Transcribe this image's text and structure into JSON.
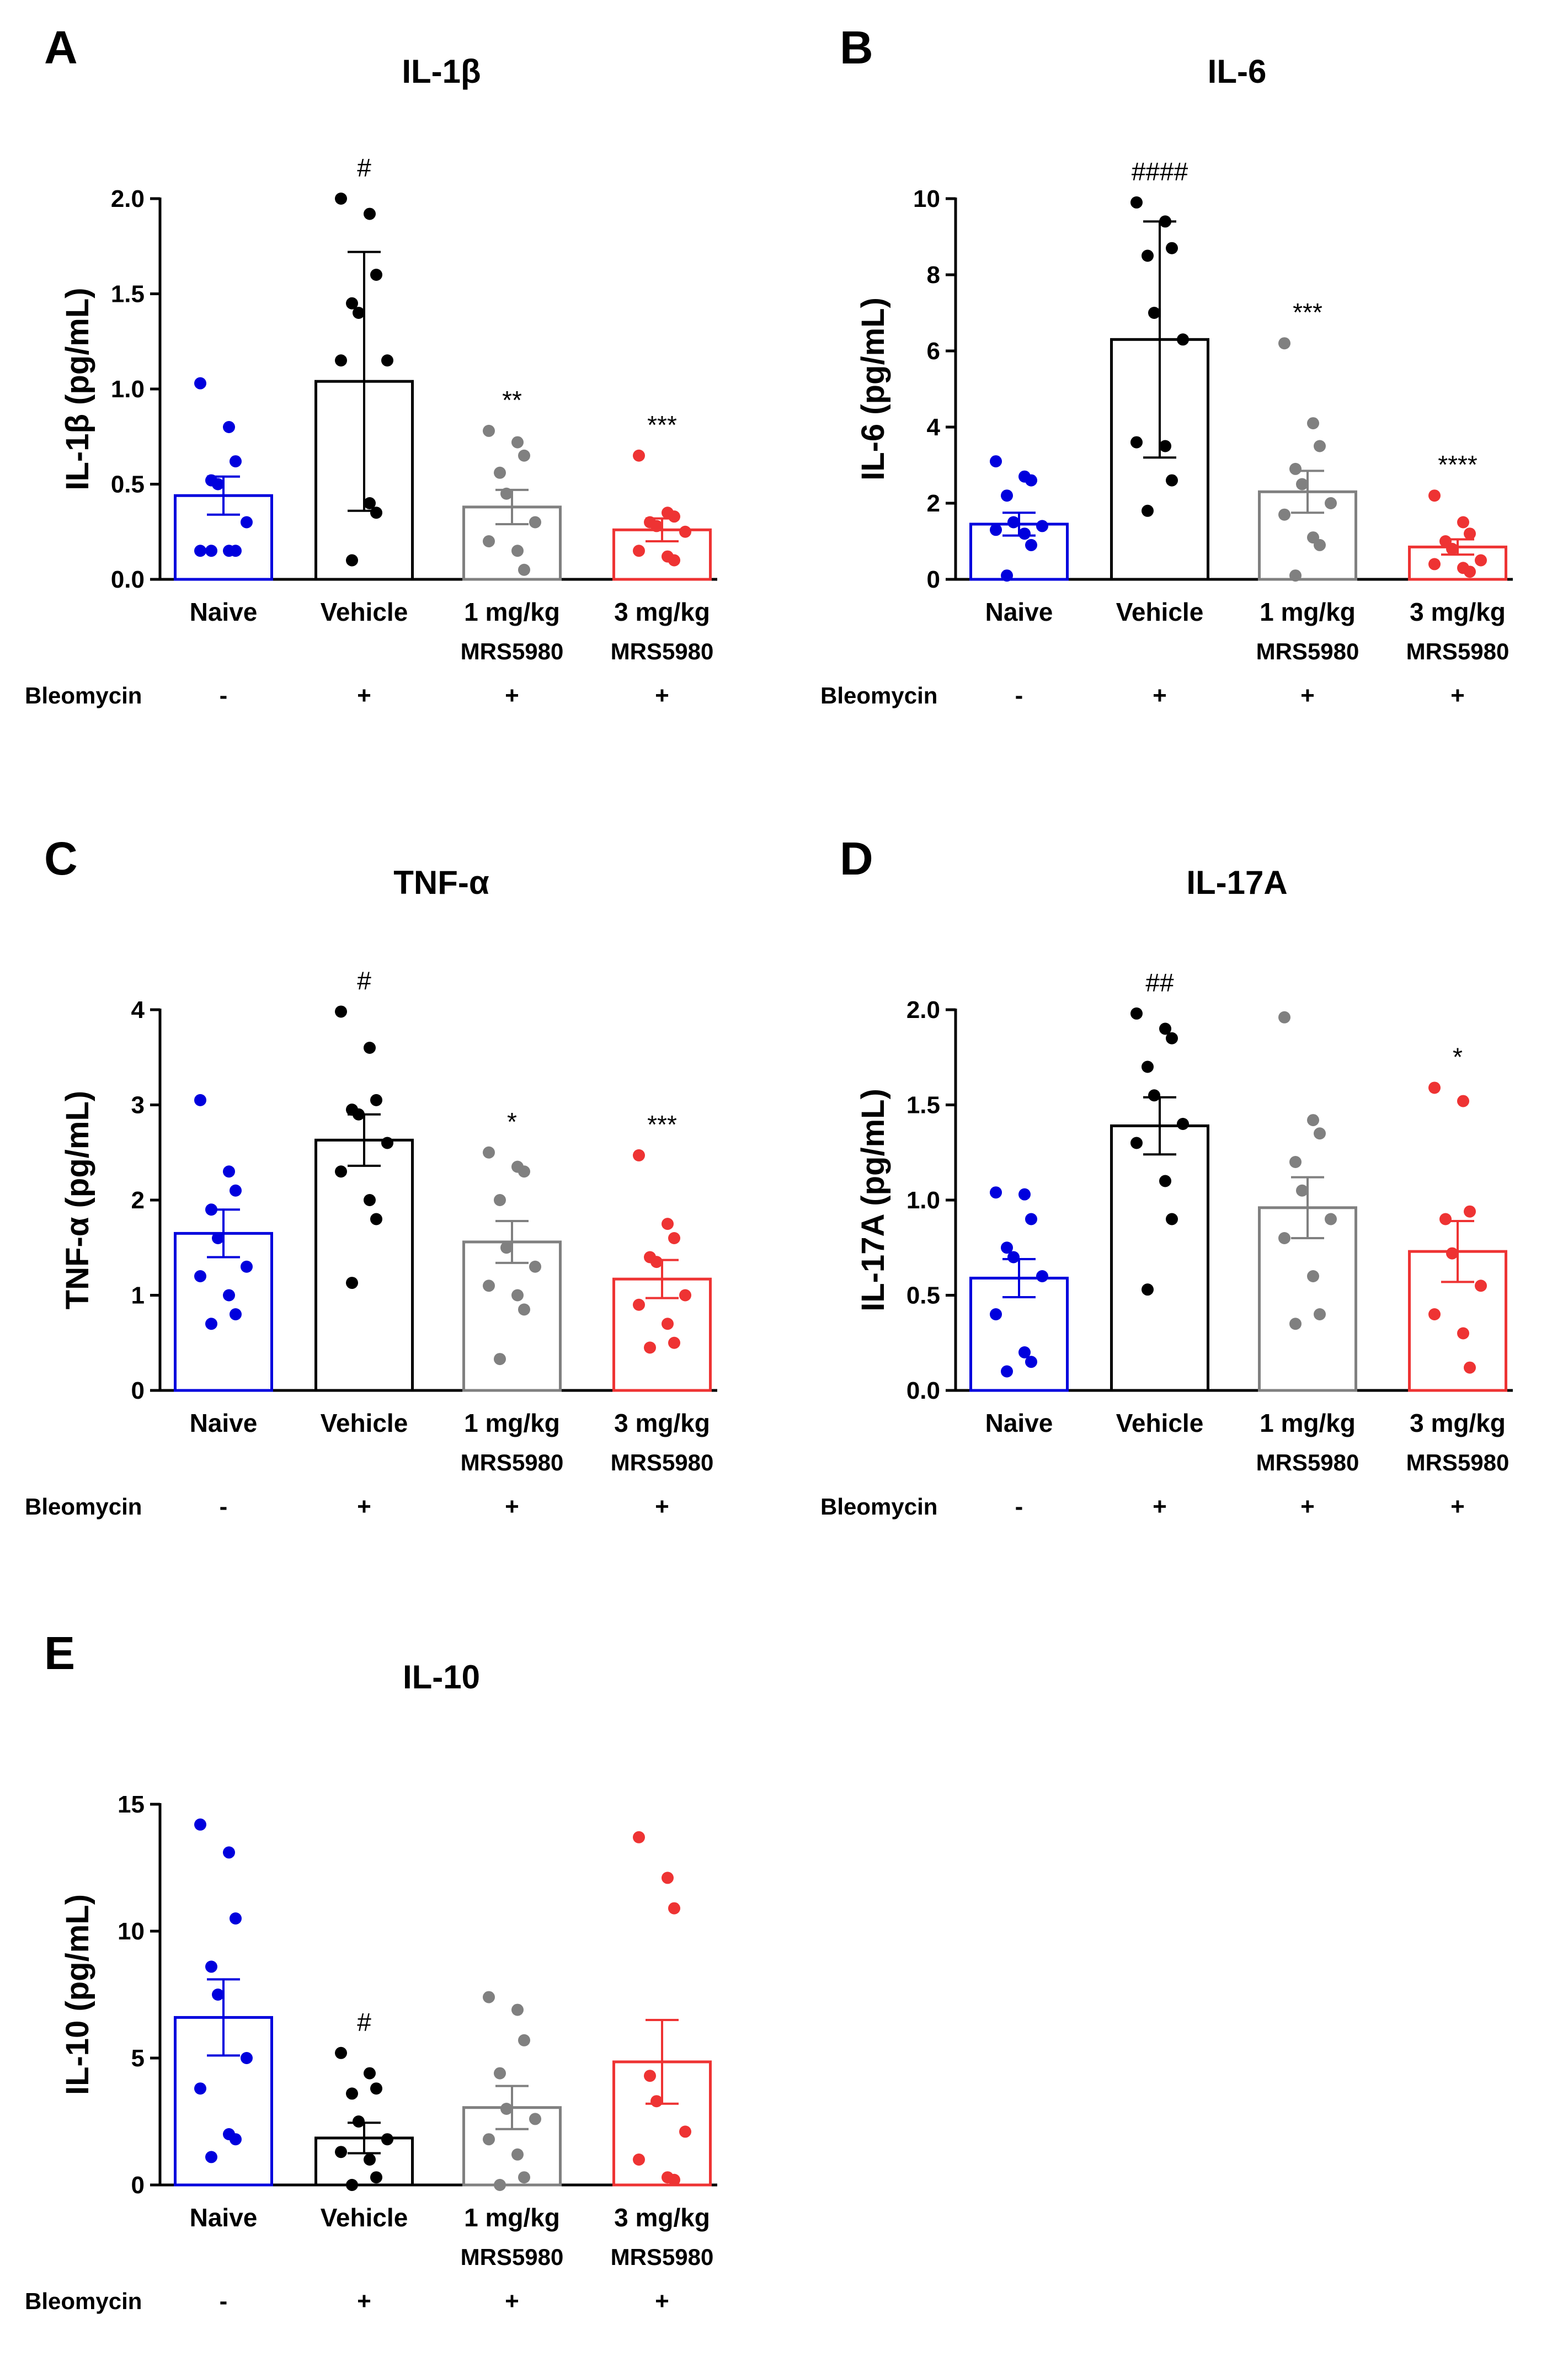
{
  "chart_data": [
    {
      "type": "bar",
      "panel": "A",
      "title": "IL-1β",
      "ylabel": "IL-1β (pg/mL)",
      "ylim": [
        0,
        2.0
      ],
      "yticks": [
        "0.0",
        "0.5",
        "1.0",
        "1.5",
        "2.0"
      ],
      "categories": [
        "Naive",
        "Vehicle",
        "1 mg/kg",
        "3 mg/kg"
      ],
      "category_sublabels": [
        "",
        "",
        "MRS5980",
        "MRS5980"
      ],
      "bleomycin_label": "Bleomycin",
      "bleomycin": [
        "-",
        "+",
        "+",
        "+"
      ],
      "means": [
        0.44,
        1.04,
        0.38,
        0.26
      ],
      "errors": [
        0.1,
        0.68,
        0.09,
        0.06
      ],
      "significance": [
        "",
        "#",
        "**",
        "***"
      ],
      "points": [
        [
          1.03,
          0.8,
          0.62,
          0.52,
          0.5,
          0.3,
          0.15,
          0.15,
          0.15,
          0.15
        ],
        [
          2.0,
          1.92,
          1.6,
          1.45,
          1.4,
          1.15,
          1.15,
          0.4,
          0.35,
          0.1
        ],
        [
          0.78,
          0.72,
          0.65,
          0.56,
          0.45,
          0.3,
          0.2,
          0.15,
          0.05
        ],
        [
          0.65,
          0.35,
          0.33,
          0.3,
          0.28,
          0.25,
          0.15,
          0.12,
          0.1
        ]
      ]
    },
    {
      "type": "bar",
      "panel": "B",
      "title": "IL-6",
      "ylabel": "IL-6 (pg/mL)",
      "ylim": [
        0,
        10
      ],
      "yticks": [
        "0",
        "2",
        "4",
        "6",
        "8",
        "10"
      ],
      "categories": [
        "Naive",
        "Vehicle",
        "1 mg/kg",
        "3 mg/kg"
      ],
      "category_sublabels": [
        "",
        "",
        "MRS5980",
        "MRS5980"
      ],
      "bleomycin_label": "Bleomycin",
      "bleomycin": [
        "-",
        "+",
        "+",
        "+"
      ],
      "means": [
        1.45,
        6.3,
        2.3,
        0.85
      ],
      "errors": [
        0.3,
        3.1,
        0.55,
        0.2
      ],
      "significance": [
        "",
        "####",
        "***",
        "****"
      ],
      "points": [
        [
          3.1,
          2.7,
          2.6,
          2.2,
          1.5,
          1.4,
          1.3,
          1.2,
          0.9,
          0.1
        ],
        [
          9.9,
          9.4,
          8.7,
          8.5,
          7.0,
          6.3,
          3.6,
          3.5,
          2.6,
          1.8
        ],
        [
          6.2,
          4.1,
          3.5,
          2.9,
          2.5,
          2.0,
          1.7,
          1.1,
          0.9,
          0.1
        ],
        [
          2.2,
          1.5,
          1.2,
          1.0,
          0.8,
          0.5,
          0.4,
          0.3,
          0.2
        ]
      ]
    },
    {
      "type": "bar",
      "panel": "C",
      "title": "TNF-α",
      "ylabel": "TNF-α (pg/mL)",
      "ylim": [
        0,
        4
      ],
      "yticks": [
        "0",
        "1",
        "2",
        "3",
        "4"
      ],
      "categories": [
        "Naive",
        "Vehicle",
        "1 mg/kg",
        "3 mg/kg"
      ],
      "category_sublabels": [
        "",
        "",
        "MRS5980",
        "MRS5980"
      ],
      "bleomycin_label": "Bleomycin",
      "bleomycin": [
        "-",
        "+",
        "+",
        "+"
      ],
      "means": [
        1.65,
        2.63,
        1.56,
        1.17
      ],
      "errors": [
        0.25,
        0.27,
        0.22,
        0.2
      ],
      "significance": [
        "",
        "#",
        "*",
        "***"
      ],
      "points": [
        [
          3.05,
          2.3,
          2.1,
          1.9,
          1.6,
          1.3,
          1.2,
          1.0,
          0.8,
          0.7
        ],
        [
          3.98,
          3.6,
          3.05,
          2.95,
          2.9,
          2.6,
          2.3,
          2.0,
          1.8,
          1.13
        ],
        [
          2.5,
          2.35,
          2.3,
          2.0,
          1.5,
          1.3,
          1.1,
          1.0,
          0.85,
          0.33
        ],
        [
          2.47,
          1.75,
          1.6,
          1.4,
          1.35,
          1.0,
          0.9,
          0.7,
          0.5,
          0.45
        ]
      ]
    },
    {
      "type": "bar",
      "panel": "D",
      "title": "IL-17A",
      "ylabel": "IL-17A (pg/mL)",
      "ylim": [
        0,
        2.0
      ],
      "yticks": [
        "0.0",
        "0.5",
        "1.0",
        "1.5",
        "2.0"
      ],
      "categories": [
        "Naive",
        "Vehicle",
        "1 mg/kg",
        "3 mg/kg"
      ],
      "category_sublabels": [
        "",
        "",
        "MRS5980",
        "MRS5980"
      ],
      "bleomycin_label": "Bleomycin",
      "bleomycin": [
        "-",
        "+",
        "+",
        "+"
      ],
      "means": [
        0.59,
        1.39,
        0.96,
        0.73
      ],
      "errors": [
        0.1,
        0.15,
        0.16,
        0.16
      ],
      "significance": [
        "",
        "##",
        "",
        "*"
      ],
      "points": [
        [
          1.04,
          1.03,
          0.9,
          0.75,
          0.7,
          0.6,
          0.4,
          0.2,
          0.15,
          0.1
        ],
        [
          1.98,
          1.9,
          1.85,
          1.7,
          1.55,
          1.4,
          1.3,
          1.1,
          0.9,
          0.53
        ],
        [
          1.96,
          1.42,
          1.35,
          1.2,
          1.05,
          0.9,
          0.8,
          0.6,
          0.4,
          0.35
        ],
        [
          1.59,
          1.52,
          0.94,
          0.9,
          0.72,
          0.55,
          0.4,
          0.3,
          0.12
        ]
      ]
    },
    {
      "type": "bar",
      "panel": "E",
      "title": "IL-10",
      "ylabel": "IL-10 (pg/mL)",
      "ylim": [
        0,
        15
      ],
      "yticks": [
        "0",
        "5",
        "10",
        "15"
      ],
      "categories": [
        "Naive",
        "Vehicle",
        "1 mg/kg",
        "3 mg/kg"
      ],
      "category_sublabels": [
        "",
        "",
        "MRS5980",
        "MRS5980"
      ],
      "bleomycin_label": "Bleomycin",
      "bleomycin": [
        "-",
        "+",
        "+",
        "+"
      ],
      "means": [
        6.6,
        1.85,
        3.05,
        4.85
      ],
      "errors": [
        1.5,
        0.6,
        0.85,
        1.65
      ],
      "significance": [
        "",
        "#",
        "",
        ""
      ],
      "points": [
        [
          14.2,
          13.1,
          10.5,
          8.6,
          7.5,
          5.0,
          3.8,
          2.0,
          1.8,
          1.1
        ],
        [
          5.2,
          4.4,
          3.8,
          3.6,
          2.5,
          1.8,
          1.3,
          1.0,
          0.3,
          0.0
        ],
        [
          7.4,
          6.9,
          5.7,
          4.4,
          3.0,
          2.6,
          1.8,
          1.2,
          0.3,
          0.0
        ],
        [
          13.7,
          12.1,
          10.9,
          4.3,
          3.3,
          2.1,
          1.0,
          0.3,
          0.2
        ]
      ]
    }
  ],
  "colors": [
    "#0000dd",
    "#000000",
    "#808080",
    "#ee3333"
  ]
}
